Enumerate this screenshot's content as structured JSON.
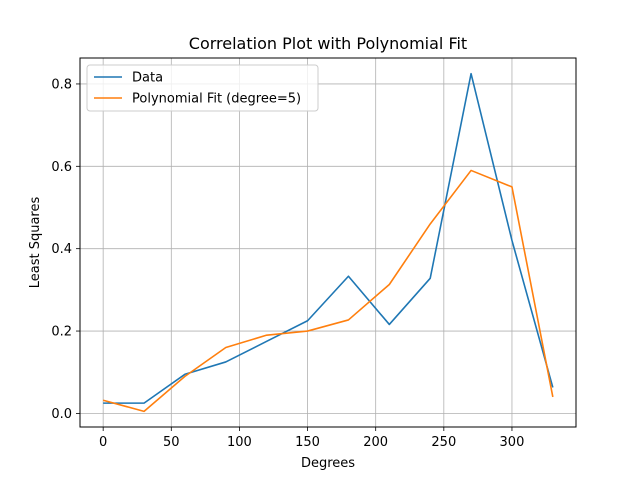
{
  "chart_data": {
    "type": "line",
    "title": "Correlation Plot with Polynomial Fit",
    "xlabel": "Degrees",
    "ylabel": "Least Squares",
    "xlim": [
      -17,
      347
    ],
    "ylim": [
      -0.033,
      0.863
    ],
    "xticks": [
      0,
      50,
      100,
      150,
      200,
      250,
      300
    ],
    "yticks": [
      0.0,
      0.2,
      0.4,
      0.6,
      0.8
    ],
    "grid": true,
    "legend_position": "upper-left",
    "x": [
      0,
      30,
      60,
      90,
      120,
      150,
      180,
      210,
      240,
      270,
      300,
      330
    ],
    "series": [
      {
        "name": "Data",
        "color": "#1f77b4",
        "values": [
          0.025,
          0.025,
          0.095,
          0.125,
          0.175,
          0.225,
          0.333,
          0.216,
          0.328,
          0.825,
          0.42,
          0.063
        ]
      },
      {
        "name": "Polynomial Fit (degree=5)",
        "color": "#ff7f0e",
        "values": [
          0.032,
          0.005,
          0.09,
          0.16,
          0.19,
          0.2,
          0.227,
          0.313,
          0.46,
          0.59,
          0.55,
          0.04
        ]
      }
    ]
  }
}
